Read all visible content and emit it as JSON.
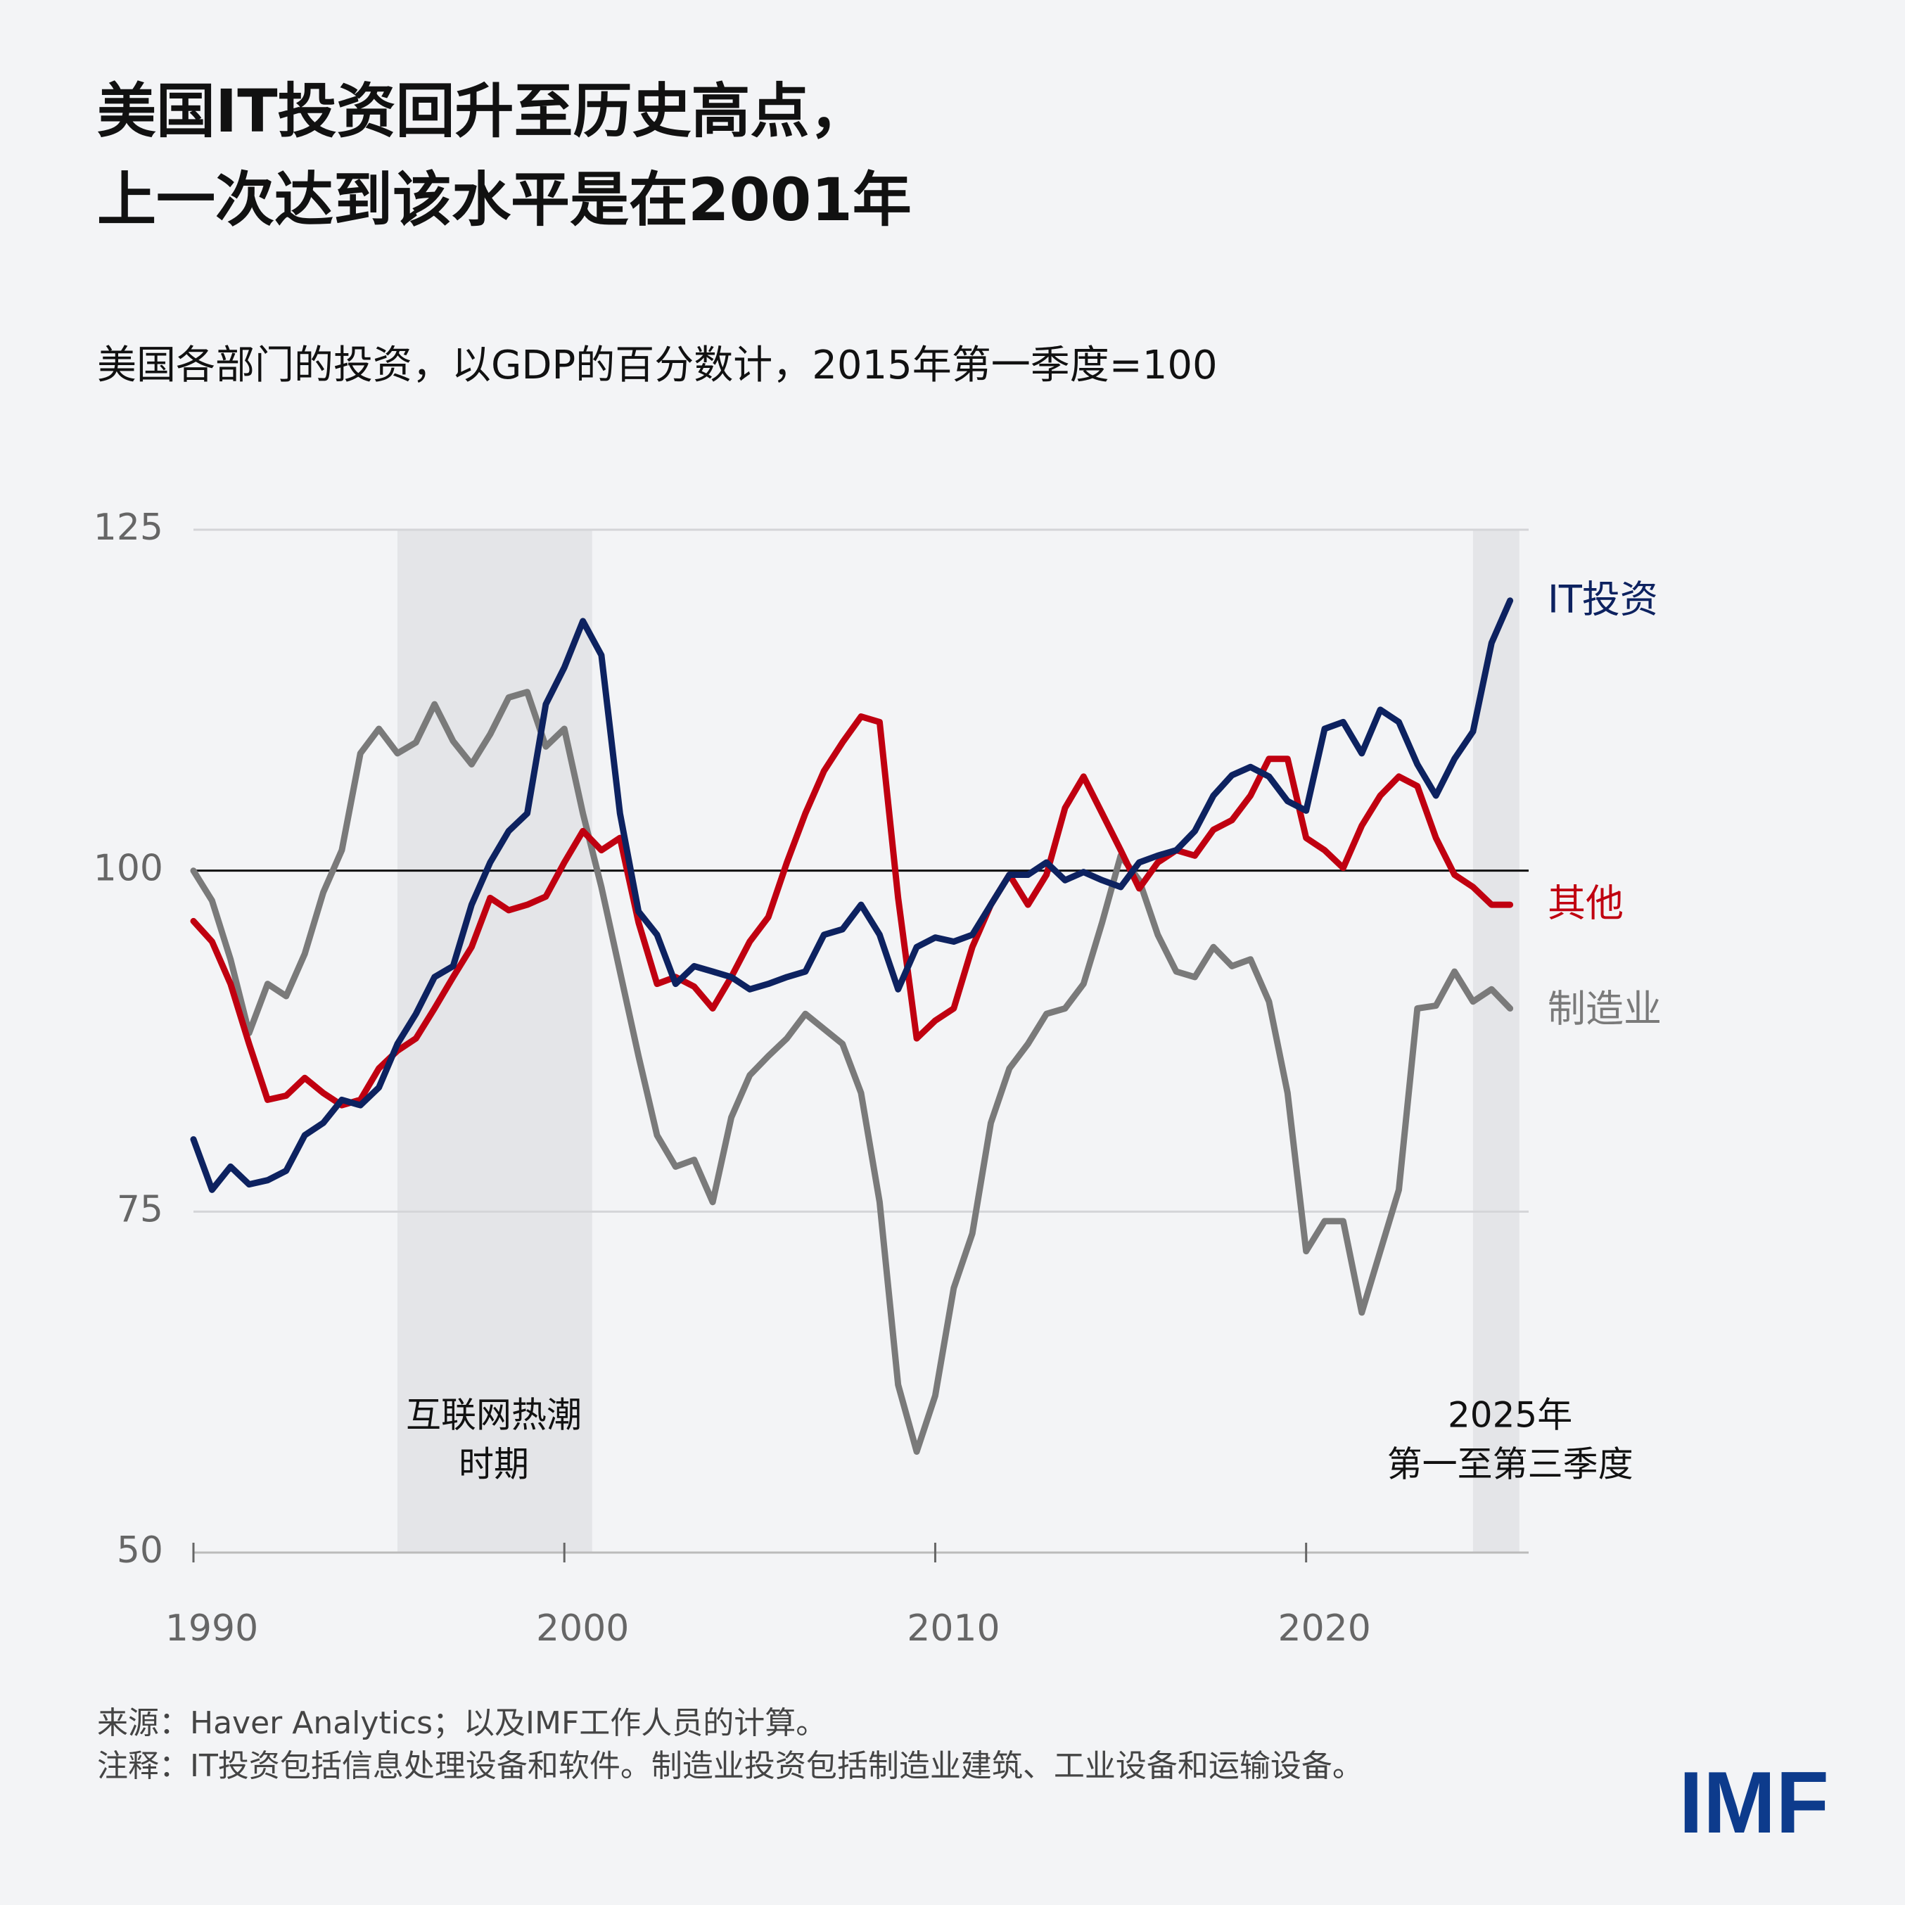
{
  "chart_data": {
    "type": "line",
    "title": [
      "美国IT投资回升至历史高点，",
      "上一次达到该水平是在2001年"
    ],
    "subtitle": "美国各部门的投资，以GDP的百分数计，2015年第一季度=100",
    "x": [
      1990,
      1990.5,
      1991,
      1991.5,
      1992,
      1992.5,
      1993,
      1993.5,
      1994,
      1994.5,
      1995,
      1995.5,
      1996,
      1996.5,
      1997,
      1997.5,
      1998,
      1998.5,
      1999,
      1999.5,
      2000,
      2000.5,
      2001,
      2001.5,
      2002,
      2002.5,
      2003,
      2003.5,
      2004,
      2004.5,
      2005,
      2005.5,
      2006,
      2006.5,
      2007,
      2007.5,
      2008,
      2008.5,
      2009,
      2009.5,
      2010,
      2010.5,
      2011,
      2011.5,
      2012,
      2012.5,
      2013,
      2013.5,
      2014,
      2014.5,
      2015,
      2015.5,
      2016,
      2016.5,
      2017,
      2017.5,
      2018,
      2018.5,
      2019,
      2019.5,
      2020,
      2020.5,
      2021,
      2021.5,
      2022,
      2022.5,
      2023,
      2023.5,
      2024,
      2024.5,
      2025,
      2025.5
    ],
    "series": [
      {
        "name": "IT投资",
        "color": "#0d2260",
        "values": [
          80.3,
          76.6,
          78.3,
          77,
          77.3,
          78,
          80.6,
          81.5,
          83.2,
          82.8,
          84.1,
          87.3,
          89.5,
          92.2,
          93,
          97.5,
          100.6,
          102.9,
          104.2,
          112.2,
          114.9,
          118.3,
          115.8,
          104.2,
          97,
          95.3,
          91.7,
          93,
          92.6,
          92.2,
          91.3,
          91.7,
          92.2,
          92.6,
          95.3,
          95.7,
          97.5,
          95.3,
          91.3,
          94.4,
          95.1,
          94.8,
          95.3,
          97.5,
          99.7,
          99.7,
          100.6,
          99.3,
          99.9,
          99.3,
          98.8,
          100.6,
          101.1,
          101.5,
          102.9,
          105.5,
          107,
          107.6,
          106.9,
          105.1,
          104.4,
          110.4,
          110.9,
          108.6,
          111.8,
          110.9,
          107.8,
          105.5,
          108.2,
          110.2,
          116.7,
          119.8
        ]
      },
      {
        "name": "其他",
        "color": "#c00010",
        "values": [
          96.3,
          94.8,
          91.7,
          87.3,
          83.2,
          83.5,
          84.8,
          83.7,
          82.8,
          83.2,
          85.5,
          86.8,
          87.7,
          89.9,
          92.2,
          94.4,
          98,
          97.1,
          97.5,
          98.1,
          100.6,
          102.9,
          101.5,
          102.4,
          96.2,
          91.7,
          92.2,
          91.5,
          89.9,
          92.2,
          94.8,
          96.6,
          100.6,
          104.2,
          107.3,
          109.4,
          111.3,
          110.9,
          98,
          87.7,
          89,
          89.9,
          94.4,
          97.5,
          99.7,
          97.5,
          99.7,
          104.6,
          106.9,
          104.2,
          101.5,
          98.7,
          100.6,
          101.5,
          101.1,
          103,
          103.7,
          105.5,
          108.2,
          108.2,
          102.4,
          101.5,
          100.2,
          103.3,
          105.5,
          106.9,
          106.2,
          102.4,
          99.7,
          98.8,
          97.5,
          97.5
        ]
      },
      {
        "name": "制造业",
        "color": "#7a7a7a",
        "values": [
          100,
          97.8,
          93.5,
          88.1,
          91.7,
          90.8,
          93.9,
          98.4,
          101.5,
          108.6,
          110.4,
          108.6,
          109.4,
          112.2,
          109.5,
          107.8,
          110,
          112.7,
          113.1,
          109.1,
          110.4,
          104.2,
          98.8,
          92.6,
          86.4,
          80.6,
          78.3,
          78.8,
          75.7,
          81.9,
          85,
          86.4,
          87.7,
          89.5,
          88.4,
          87.3,
          83.7,
          75.7,
          62.3,
          57.4,
          61.5,
          69.4,
          73.4,
          81.5,
          85.5,
          87.3,
          89.5,
          89.9,
          91.7,
          96.2,
          101.1,
          99.3,
          95.3,
          92.6,
          92.2,
          94.4,
          93,
          93.5,
          90.4,
          83.7,
          72.1,
          74.3,
          74.3,
          67.6,
          72.1,
          76.6,
          89.9,
          90.1,
          92.6,
          90.4,
          91.3,
          89.9
        ]
      }
    ],
    "xlim": [
      1990,
      2026
    ],
    "ylim": [
      50,
      125
    ],
    "xticks": [
      1990,
      2000,
      2010,
      2020
    ],
    "yticks": [
      50,
      75,
      100,
      125
    ],
    "baseline": 100,
    "grid": true,
    "shaded": [
      [
        1995.5,
        2000.75
      ],
      [
        2024.5,
        2025.75
      ]
    ],
    "annotations": [
      {
        "text": [
          "互联网热潮",
          "时期"
        ],
        "x": 1998.1
      },
      {
        "text": [
          "2025年",
          "第一至第三季度"
        ],
        "x": 2025.5
      }
    ],
    "source": "来源：Haver Analytics；以及IMF工作人员的计算。",
    "note": "注释：IT投资包括信息处理设备和软件。制造业投资包括制造业建筑、工业设备和运输设备。",
    "logo": "IMF"
  }
}
